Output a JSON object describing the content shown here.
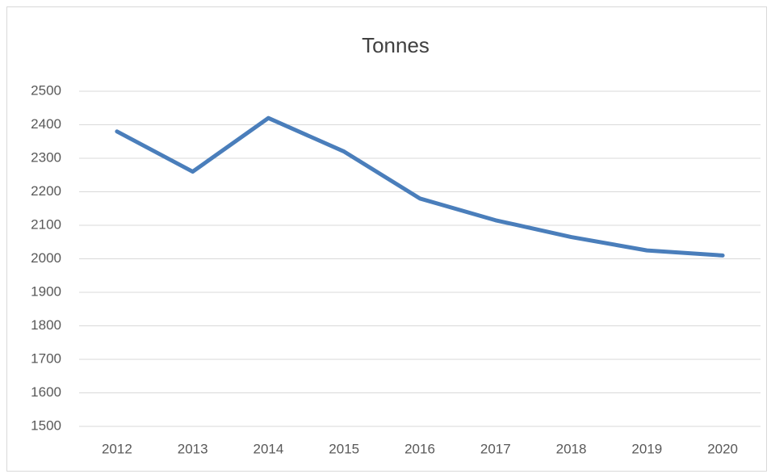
{
  "chart_data": {
    "type": "line",
    "title": "Tonnes",
    "categories": [
      "2012",
      "2013",
      "2014",
      "2015",
      "2016",
      "2017",
      "2018",
      "2019",
      "2020"
    ],
    "series": [
      {
        "name": "Tonnes",
        "color": "#4a7ebb",
        "values": [
          2380,
          2260,
          2420,
          2320,
          2180,
          2115,
          2065,
          2025,
          2010
        ]
      }
    ],
    "ylim": [
      1500,
      2500
    ],
    "yticks": [
      1500,
      1600,
      1700,
      1800,
      1900,
      2000,
      2100,
      2200,
      2300,
      2400,
      2500
    ],
    "grid": true
  }
}
